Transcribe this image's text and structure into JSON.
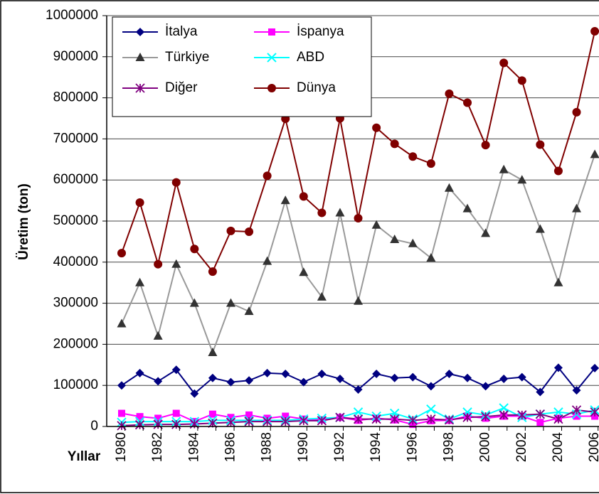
{
  "chart_data": {
    "type": "line",
    "x_label": "Yıllar",
    "y_label": "Üretim (ton)",
    "categories": [
      "1980",
      null,
      "1982",
      null,
      "1984",
      null,
      "1986",
      null,
      "1988",
      null,
      "1990",
      null,
      "1992",
      null,
      "1994",
      null,
      "1996",
      null,
      "1998",
      null,
      "2000",
      null,
      "2002",
      null,
      "2004",
      null,
      "2006"
    ],
    "ylim": [
      0,
      1000000
    ],
    "yticks": [
      0,
      100000,
      200000,
      300000,
      400000,
      500000,
      600000,
      700000,
      800000,
      900000,
      1000000
    ],
    "grid": true,
    "legend": "top-left",
    "series": [
      {
        "name": "İtalya",
        "color": "#000080",
        "marker": "diamond",
        "marker_color": "#000080",
        "values": [
          100000,
          130000,
          110000,
          138000,
          80000,
          118000,
          108000,
          112000,
          130000,
          128000,
          108000,
          128000,
          116000,
          90000,
          128000,
          118000,
          120000,
          98000,
          128000,
          118000,
          98000,
          116000,
          120000,
          84000,
          143000,
          88000,
          142000
        ]
      },
      {
        "name": "İspanya",
        "color": "#ff00ff",
        "marker": "square",
        "marker_color": "#ff00ff",
        "values": [
          32000,
          24000,
          20000,
          32000,
          12000,
          30000,
          22000,
          28000,
          20000,
          25000,
          18000,
          16000,
          22000,
          15000,
          20000,
          16000,
          5000,
          14000,
          15000,
          25000,
          20000,
          25000,
          25000,
          10000,
          20000,
          25000,
          25000
        ]
      },
      {
        "name": "Türkiye",
        "color": "#999999",
        "marker": "triangle",
        "marker_color": "#333333",
        "values": [
          250000,
          350000,
          220000,
          395000,
          300000,
          180000,
          300000,
          280000,
          402000,
          550000,
          375000,
          315000,
          520000,
          305000,
          490000,
          455000,
          445000,
          410000,
          580000,
          530000,
          470000,
          625000,
          600000,
          480000,
          350000,
          530000,
          662000
        ]
      },
      {
        "name": "ABD",
        "color": "#00ffff",
        "marker": "x",
        "marker_color": "#00ffff",
        "values": [
          10000,
          12000,
          12000,
          12000,
          12000,
          15000,
          15000,
          15000,
          15000,
          15000,
          18000,
          20000,
          22000,
          35000,
          25000,
          32000,
          18000,
          42000,
          18000,
          35000,
          28000,
          45000,
          22000,
          30000,
          35000,
          30000,
          40000
        ]
      },
      {
        "name": "Diğer",
        "color": "#800080",
        "marker": "star",
        "marker_color": "#800080",
        "values": [
          2000,
          4000,
          5000,
          5000,
          6000,
          8000,
          10000,
          12000,
          12000,
          12000,
          14000,
          14000,
          22000,
          18000,
          18000,
          18000,
          15000,
          18000,
          16000,
          22000,
          24000,
          28000,
          28000,
          30000,
          18000,
          40000,
          35000
        ]
      },
      {
        "name": "Dünya",
        "color": "#800000",
        "marker": "circle",
        "marker_color": "#800000",
        "values": [
          422000,
          545000,
          395000,
          594000,
          432000,
          377000,
          476000,
          474000,
          610000,
          749000,
          560000,
          520000,
          750000,
          507000,
          727000,
          688000,
          657000,
          640000,
          810000,
          788000,
          685000,
          885000,
          842000,
          686000,
          622000,
          765000,
          962000
        ]
      }
    ]
  }
}
